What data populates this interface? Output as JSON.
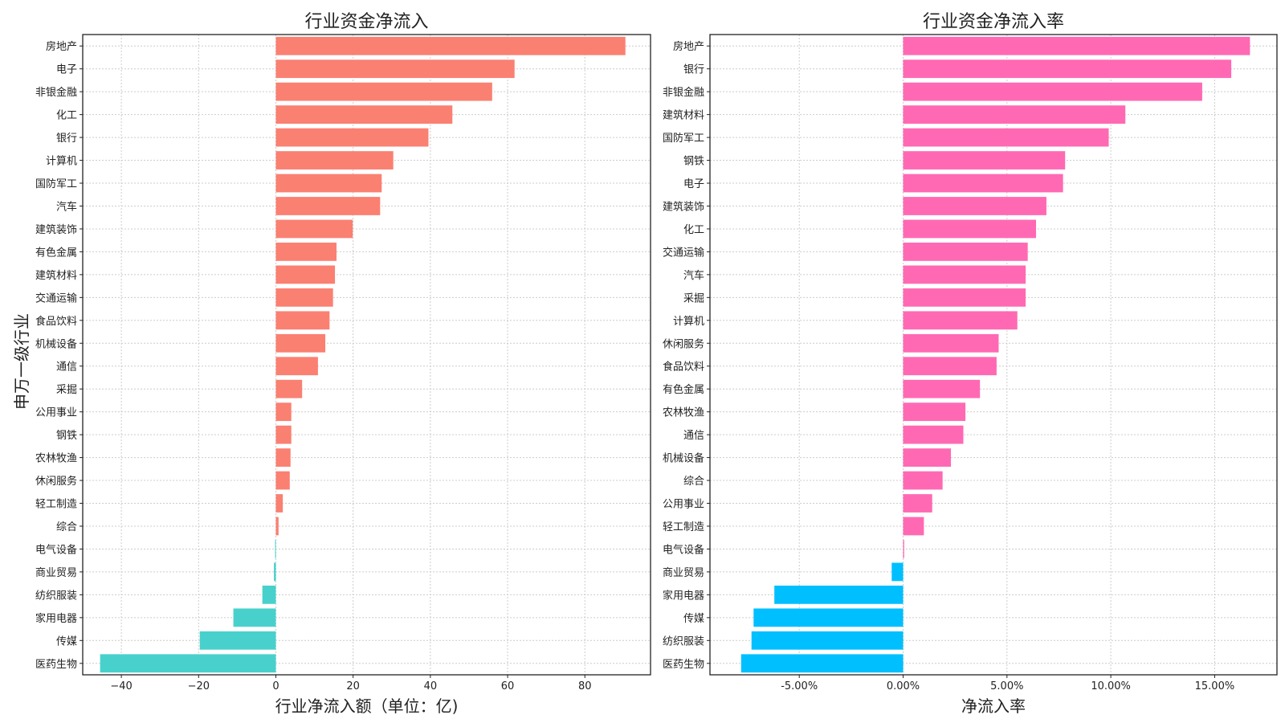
{
  "ylabel_shared": "申万一级行业",
  "colors": {
    "left_pos": "#FA8072",
    "left_neg": "#48D1CC",
    "right_pos": "#FF69B4",
    "right_neg": "#00BFFF"
  },
  "chart_data": [
    {
      "type": "bar",
      "orientation": "horizontal",
      "title": "行业资金净流入",
      "xlabel": "行业净流入额（单位：亿)",
      "xlim": [
        -50,
        97
      ],
      "xticks": [
        -40,
        -20,
        0,
        20,
        40,
        60,
        80
      ],
      "xtick_labels": [
        "−40",
        "−20",
        "0",
        "20",
        "40",
        "60",
        "80"
      ],
      "grid": true,
      "categories": [
        "房地产",
        "电子",
        "非银金融",
        "化工",
        "银行",
        "计算机",
        "国防军工",
        "汽车",
        "建筑装饰",
        "有色金属",
        "建筑材料",
        "交通运输",
        "食品饮料",
        "机械设备",
        "通信",
        "采掘",
        "公用事业",
        "钢铁",
        "农林牧渔",
        "休闲服务",
        "轻工制造",
        "综合",
        "电气设备",
        "商业贸易",
        "纺织服装",
        "家用电器",
        "传媒",
        "医药生物"
      ],
      "values": [
        90.5,
        61.8,
        56.0,
        45.7,
        39.5,
        30.4,
        27.4,
        27.0,
        19.9,
        15.7,
        15.3,
        14.8,
        13.9,
        12.8,
        10.9,
        6.8,
        4.0,
        4.0,
        3.8,
        3.6,
        1.8,
        0.7,
        -0.2,
        -0.5,
        -3.5,
        -11.0,
        -19.7,
        -45.5
      ]
    },
    {
      "type": "bar",
      "orientation": "horizontal",
      "title": "行业资金净流入率",
      "xlabel": "净流入率",
      "xlim": [
        -9.3,
        18.0
      ],
      "xticks": [
        -5,
        0,
        5,
        10,
        15
      ],
      "xtick_labels": [
        "-5.00%",
        "0.00%",
        "5.00%",
        "10.00%",
        "15.00%"
      ],
      "grid": true,
      "categories": [
        "房地产",
        "银行",
        "非银金融",
        "建筑材料",
        "国防军工",
        "钢铁",
        "电子",
        "建筑装饰",
        "化工",
        "交通运输",
        "汽车",
        "采掘",
        "计算机",
        "休闲服务",
        "食品饮料",
        "有色金属",
        "农林牧渔",
        "通信",
        "机械设备",
        "综合",
        "公用事业",
        "轻工制造",
        "电气设备",
        "商业贸易",
        "家用电器",
        "传媒",
        "纺织服装",
        "医药生物"
      ],
      "values": [
        16.7,
        15.8,
        14.4,
        10.7,
        9.9,
        7.8,
        7.7,
        6.9,
        6.4,
        6.0,
        5.9,
        5.9,
        5.5,
        4.6,
        4.5,
        3.7,
        3.0,
        2.9,
        2.3,
        1.9,
        1.4,
        1.0,
        0.05,
        -0.55,
        -6.2,
        -7.2,
        -7.3,
        -7.8
      ]
    }
  ]
}
